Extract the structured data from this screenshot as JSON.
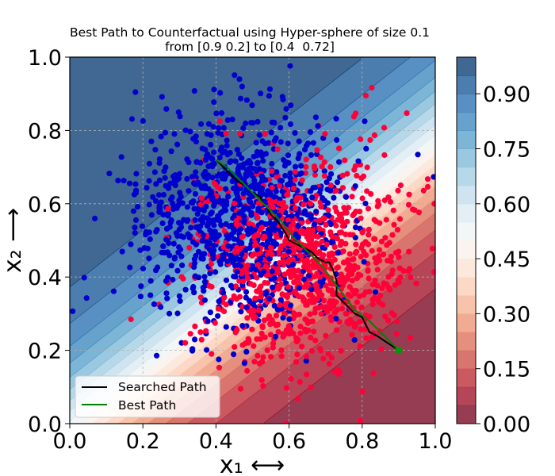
{
  "chart_data": {
    "type": "scatter",
    "title": "Best Path to Counterfactual using Hyper-sphere of size 0.1",
    "subtitle": "from [0.9 0.2] to [0.4  0.72]",
    "xlabel": "x₁ ⟷",
    "ylabel": "x₂ ⟶",
    "xlim": [
      0.0,
      1.0
    ],
    "ylim": [
      0.0,
      1.0
    ],
    "x_ticks": [
      "0.0",
      "0.2",
      "0.4",
      "0.6",
      "0.8",
      "1.0"
    ],
    "y_ticks": [
      "0.0",
      "0.2",
      "0.4",
      "0.6",
      "0.8",
      "1.0"
    ],
    "grid": true,
    "background": {
      "type": "filled-contour",
      "colormap": "RdBu",
      "range": [
        0.0,
        1.0
      ],
      "colorbar_ticks": [
        "0.00",
        "0.15",
        "0.30",
        "0.45",
        "0.60",
        "0.75",
        "0.90"
      ]
    },
    "point_classes": [
      {
        "color": "#0000cc",
        "n_points": 1000,
        "center": [
          0.46,
          0.56
        ],
        "spread": [
          0.14,
          0.14
        ]
      },
      {
        "color": "#ff0038",
        "n_points": 1000,
        "center": [
          0.64,
          0.44
        ],
        "spread": [
          0.14,
          0.14
        ]
      }
    ],
    "series": [
      {
        "name": "Searched Path",
        "color": "#000000",
        "x": [
          0.9,
          0.87,
          0.84,
          0.82,
          0.81,
          0.8,
          0.78,
          0.76,
          0.75,
          0.73,
          0.73,
          0.72,
          0.71,
          0.7,
          0.68,
          0.66,
          0.64,
          0.62,
          0.6,
          0.59,
          0.57,
          0.56,
          0.55,
          0.54,
          0.53,
          0.52,
          0.5,
          0.48,
          0.46,
          0.44,
          0.42,
          0.4
        ],
        "y": [
          0.2,
          0.22,
          0.24,
          0.25,
          0.27,
          0.29,
          0.3,
          0.32,
          0.33,
          0.35,
          0.39,
          0.42,
          0.44,
          0.44,
          0.45,
          0.47,
          0.48,
          0.49,
          0.5,
          0.52,
          0.55,
          0.56,
          0.57,
          0.59,
          0.6,
          0.62,
          0.63,
          0.65,
          0.66,
          0.68,
          0.7,
          0.72
        ]
      },
      {
        "name": "Best Path",
        "color": "#008000",
        "x": [
          0.9,
          0.86,
          0.82,
          0.78,
          0.75,
          0.72,
          0.69,
          0.65,
          0.61,
          0.58,
          0.55,
          0.52,
          0.49,
          0.46,
          0.43,
          0.4
        ],
        "y": [
          0.2,
          0.24,
          0.28,
          0.31,
          0.35,
          0.39,
          0.43,
          0.47,
          0.51,
          0.55,
          0.58,
          0.61,
          0.64,
          0.67,
          0.7,
          0.72
        ]
      }
    ],
    "markers": [
      {
        "x": 0.9,
        "y": 0.2,
        "color": "#009900"
      }
    ],
    "legend": {
      "placement": "lower-left",
      "entries": [
        "Searched Path",
        "Best Path"
      ]
    }
  }
}
